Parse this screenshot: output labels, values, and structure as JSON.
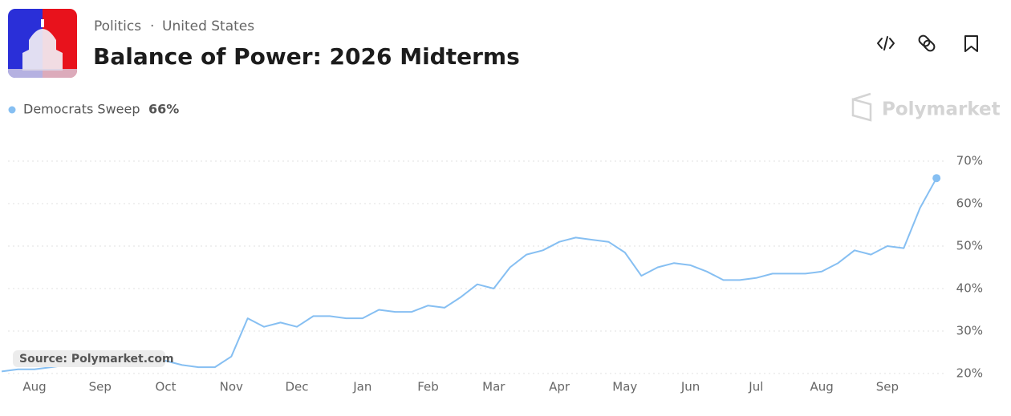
{
  "breadcrumb": [
    "Politics",
    "United States"
  ],
  "brand": "Polymarket",
  "source": "Source: Polymarket.com",
  "chart_data": {
    "type": "line",
    "title": "Balance of Power: 2026 Midterms",
    "categories": [
      null,
      null,
      "Aug",
      null,
      null,
      null,
      "Sep",
      null,
      null,
      null,
      "Oct",
      null,
      null,
      null,
      "Nov",
      null,
      null,
      null,
      "Dec",
      null,
      null,
      null,
      "Jan",
      null,
      null,
      null,
      "Feb",
      null,
      null,
      null,
      "Mar",
      null,
      null,
      null,
      "Apr",
      null,
      null,
      null,
      "May",
      null,
      null,
      null,
      "Jun",
      null,
      null,
      null,
      "Jul",
      null,
      null,
      null,
      "Aug",
      null,
      null,
      null,
      "Sep",
      null,
      null,
      null
    ],
    "series": [
      {
        "name": "Democrats Sweep",
        "color": "#86bff2",
        "values": [
          20.5,
          21,
          21,
          21.5,
          22,
          22.5,
          23,
          23,
          23,
          23,
          23,
          22,
          21.5,
          21.5,
          24,
          33,
          31,
          32,
          31,
          33.5,
          33.5,
          33,
          33,
          35,
          34.5,
          34.5,
          36,
          35.5,
          38,
          41,
          40,
          45,
          48,
          49,
          51,
          52,
          51.5,
          51,
          48.5,
          43,
          45,
          46,
          45.5,
          44,
          42,
          42,
          42.5,
          43.5,
          43.5,
          43.5,
          44,
          46,
          49,
          48,
          50,
          49.5,
          59,
          66
        ],
        "value_labels": [
          null,
          null,
          null,
          null,
          null,
          null,
          null,
          null,
          null,
          null,
          null,
          null,
          null,
          null,
          null,
          null,
          null,
          null,
          null,
          null,
          null,
          null,
          null,
          null,
          null,
          null,
          null,
          null,
          null,
          null,
          null,
          null,
          null,
          null,
          null,
          null,
          null,
          null,
          null,
          null,
          null,
          null,
          null,
          null,
          null,
          null,
          null,
          null,
          null,
          null,
          null,
          null,
          null,
          null,
          null,
          null,
          null,
          "66%"
        ]
      }
    ],
    "ylim": [
      20,
      70
    ],
    "yticks": [
      {
        "value": 20,
        "label": "20%"
      },
      {
        "value": 30,
        "label": "30%"
      },
      {
        "value": 40,
        "label": "40%"
      },
      {
        "value": 50,
        "label": "50%"
      },
      {
        "value": 60,
        "label": "60%"
      },
      {
        "value": 70,
        "label": "70%"
      }
    ],
    "grid": true
  }
}
